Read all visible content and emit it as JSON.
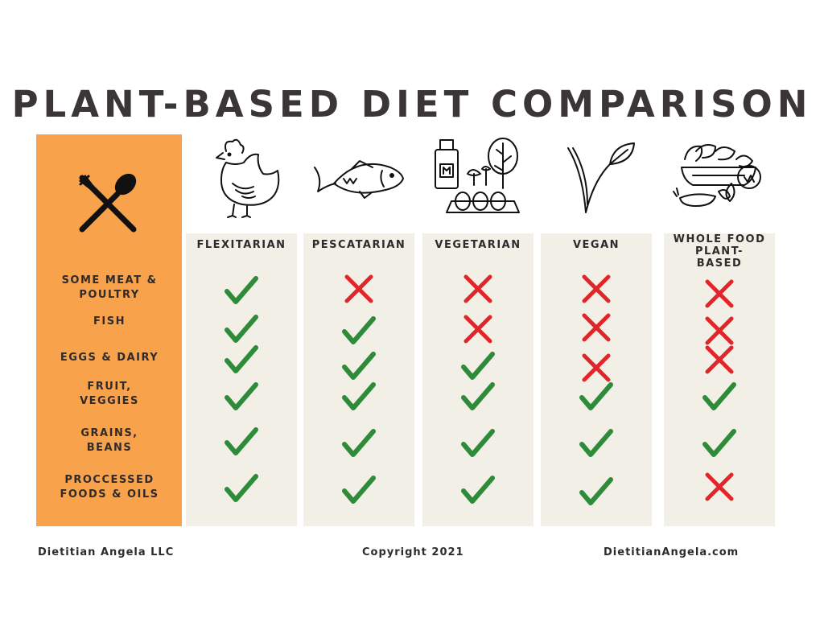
{
  "title": "PLANT-BASED DIET COMPARISON",
  "colors": {
    "accent": "#f9a24c",
    "column_bg": "#f2efe6",
    "check": "#2e8b3a",
    "cross": "#e0262b",
    "text": "#2f2a2b"
  },
  "columns": [
    {
      "label": "FLEXITARIAN",
      "icon": "chicken-icon"
    },
    {
      "label": "PESCATARIAN",
      "icon": "fish-icon"
    },
    {
      "label": "VEGETARIAN",
      "icon": "milk-eggs-vegetables-icon"
    },
    {
      "label": "VEGAN",
      "icon": "vegan-v-leaf-icon"
    },
    {
      "label": "WHOLE FOOD\nPLANT-\nBASED",
      "icon": "vegetables-basket-icon"
    }
  ],
  "rows": [
    {
      "label": "SOME MEAT &\nPOULTRY",
      "values": [
        true,
        false,
        false,
        false,
        false
      ]
    },
    {
      "label": "FISH",
      "values": [
        true,
        true,
        false,
        false,
        false
      ]
    },
    {
      "label": "EGGS & DAIRY",
      "values": [
        true,
        true,
        true,
        false,
        false
      ]
    },
    {
      "label": "FRUIT,\nVEGGIES",
      "values": [
        true,
        true,
        true,
        true,
        true
      ]
    },
    {
      "label": "GRAINS,\nBEANS",
      "values": [
        true,
        true,
        true,
        true,
        true
      ]
    },
    {
      "label": "PROCCESSED\nFOODS & OILS",
      "values": [
        true,
        true,
        true,
        true,
        false
      ]
    }
  ],
  "side_icon": "fork-spoon-icon",
  "footer": {
    "left": "Dietitian Angela LLC",
    "center": "Copyright 2021",
    "right": "DietitianAngela.com"
  }
}
